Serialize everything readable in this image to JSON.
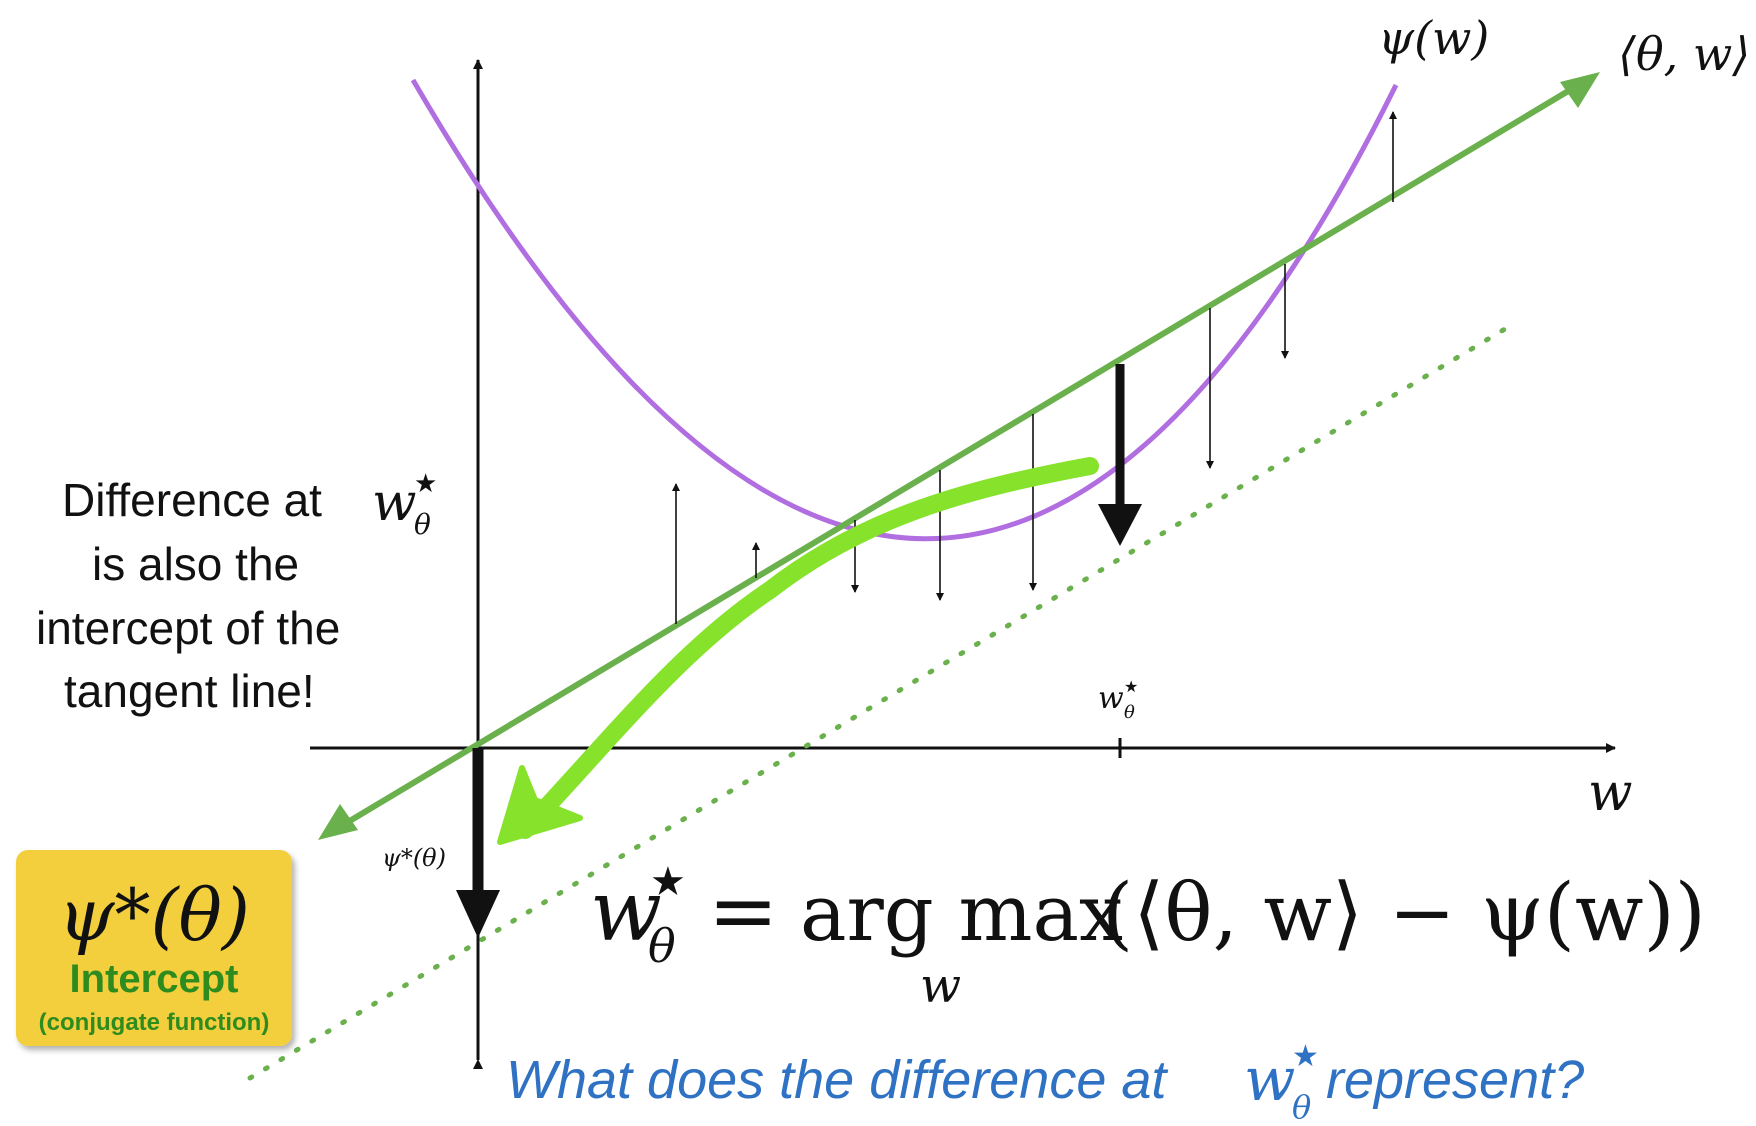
{
  "labels": {
    "psi_w": "ψ(w)",
    "inner_product": "⟨θ, w⟩",
    "w_axis": "w",
    "w_star_tick": "w",
    "w_star_sup": "★",
    "w_star_sub": "θ",
    "psi_star_small": "ψ*(θ)"
  },
  "left_note": {
    "line1_text": "Difference at ",
    "line1_math": "w",
    "line1_sup": "★",
    "line1_sub": "θ",
    "line2": "is also the",
    "line3": "intercept of the",
    "line4": "tangent line!"
  },
  "badge": {
    "math": "ψ*(θ)",
    "title": "Intercept",
    "subtitle": "(conjugate function)",
    "color": "#f3cf3d"
  },
  "equation": {
    "lhs": "w",
    "lhs_sup": "★",
    "lhs_sub": "θ",
    "equals": "=",
    "op": "arg max",
    "op_sub": "w",
    "rhs": "(⟨θ, w⟩ − ψ(w))"
  },
  "question": {
    "before": "What does the difference at ",
    "math": "w",
    "sup": "★",
    "sub": "θ",
    "after": " represent?"
  },
  "colors": {
    "curve": "#b06ee0",
    "line": "#6ab04c",
    "highlight": "#86e22a",
    "axis": "#111111",
    "question": "#2f72c4",
    "badge_text": "#2e8b1e"
  }
}
